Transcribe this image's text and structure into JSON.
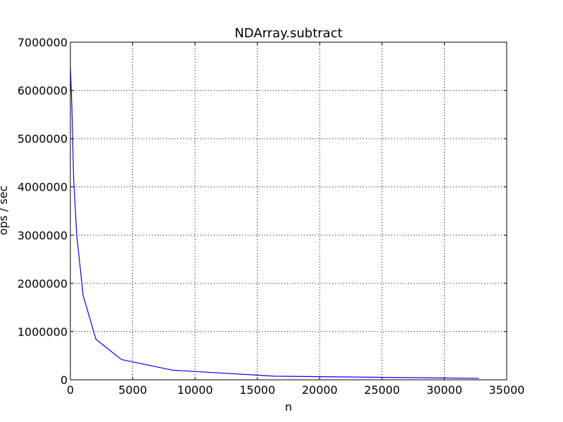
{
  "chart_data": {
    "type": "line",
    "title": "NDArray.subtract",
    "xlabel": "n",
    "ylabel": "ops / sec",
    "xlim": [
      0,
      35000
    ],
    "ylim": [
      0,
      7000000
    ],
    "xticks": [
      0,
      5000,
      10000,
      15000,
      20000,
      25000,
      30000,
      35000
    ],
    "yticks": [
      0,
      1000000,
      2000000,
      3000000,
      4000000,
      5000000,
      6000000,
      7000000
    ],
    "xtick_labels": [
      "0",
      "5000",
      "10000",
      "15000",
      "20000",
      "25000",
      "30000",
      "35000"
    ],
    "ytick_labels": [
      "0",
      "1000000",
      "2000000",
      "3000000",
      "4000000",
      "5000000",
      "6000000",
      "7000000"
    ],
    "grid": true,
    "series": [
      {
        "color": "#0000ff",
        "x": [
          1,
          128,
          256,
          512,
          1024,
          2048,
          4096,
          8192,
          16384,
          32768
        ],
        "y": [
          6500000,
          5600000,
          4200000,
          3000000,
          1750000,
          840000,
          420000,
          200000,
          75000,
          30000
        ]
      }
    ]
  }
}
